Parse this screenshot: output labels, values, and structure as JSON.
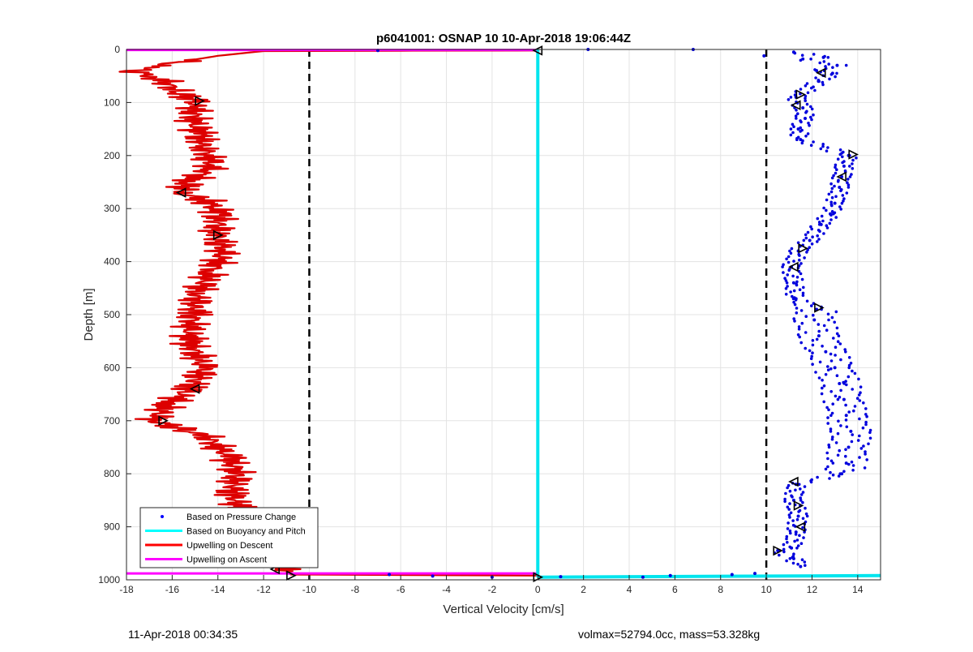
{
  "chart_data": {
    "type": "line",
    "title": "p6041001: OSNAP 10 10-Apr-2018 19:06:44Z",
    "xlabel": "Vertical Velocity [cm/s]",
    "ylabel": "Depth [m]",
    "xlim": [
      -18,
      15
    ],
    "ylim": [
      0,
      1000
    ],
    "y_reversed": true,
    "grid": true,
    "xticks": [
      "-18",
      "-16",
      "-14",
      "-12",
      "-10",
      "-8",
      "-6",
      "-4",
      "-2",
      "0",
      "2",
      "4",
      "6",
      "8",
      "10",
      "12",
      "14"
    ],
    "yticks": [
      "0",
      "100",
      "200",
      "300",
      "400",
      "500",
      "600",
      "700",
      "800",
      "900",
      "1000"
    ],
    "reference_lines": [
      -10,
      10
    ],
    "legend_position": "bottom-left",
    "legend": [
      {
        "name": "Based on Pressure Change",
        "color": "#0000ff",
        "style": "dot"
      },
      {
        "name": "Based on Buoyancy and Pitch",
        "color": "#00ffff",
        "style": "line"
      },
      {
        "name": "Upwelling on Descent",
        "color": "#ff0000",
        "style": "line"
      },
      {
        "name": "Upwelling on Ascent",
        "color": "#ff00ff",
        "style": "line"
      }
    ],
    "series": [
      {
        "name": "Upwelling on Descent",
        "color": "#dd0000",
        "points": [
          [
            0,
            2
          ],
          [
            -12,
            3
          ],
          [
            -14,
            12
          ],
          [
            -17.3,
            35
          ],
          [
            -17.6,
            42
          ],
          [
            -16.5,
            55
          ],
          [
            -15.8,
            80
          ],
          [
            -15,
            98
          ],
          [
            -15.1,
            130
          ],
          [
            -14.8,
            160
          ],
          [
            -14.6,
            190
          ],
          [
            -14.2,
            220
          ],
          [
            -15.3,
            250
          ],
          [
            -15.6,
            270
          ],
          [
            -14.5,
            285
          ],
          [
            -13.9,
            310
          ],
          [
            -14.1,
            350
          ],
          [
            -13.7,
            380
          ],
          [
            -14.3,
            420
          ],
          [
            -14.9,
            460
          ],
          [
            -15.1,
            500
          ],
          [
            -15.3,
            550
          ],
          [
            -14.6,
            600
          ],
          [
            -15.2,
            640
          ],
          [
            -16.2,
            670
          ],
          [
            -16.8,
            700
          ],
          [
            -14.5,
            730
          ],
          [
            -13.5,
            770
          ],
          [
            -13.2,
            800
          ],
          [
            -13.4,
            840
          ],
          [
            -12.8,
            880
          ],
          [
            -12.2,
            920
          ],
          [
            -11.7,
            950
          ],
          [
            -11.2,
            980
          ],
          [
            -10.8,
            990
          ],
          [
            0,
            992
          ]
        ]
      },
      {
        "name": "Upwelling on Ascent",
        "color": "#ff00ff",
        "points": [
          [
            -18,
            1
          ],
          [
            0,
            1
          ],
          [
            -18,
            988
          ],
          [
            0,
            988
          ]
        ]
      },
      {
        "name": "Based on Buoyancy and Pitch",
        "color": "#00e5ee",
        "points": [
          [
            0,
            0
          ],
          [
            0,
            995
          ],
          [
            15,
            992
          ]
        ]
      }
    ],
    "pressure_change_points": [
      [
        11.2,
        5
      ],
      [
        12.5,
        15
      ],
      [
        13.1,
        30
      ],
      [
        12.9,
        45
      ],
      [
        12.3,
        60
      ],
      [
        11.3,
        90
      ],
      [
        11.6,
        110
      ],
      [
        11.7,
        130
      ],
      [
        11.4,
        150
      ],
      [
        11.5,
        170
      ],
      [
        13.6,
        200
      ],
      [
        13.4,
        220
      ],
      [
        13.3,
        240
      ],
      [
        13.2,
        260
      ],
      [
        13,
        290
      ],
      [
        12.8,
        310
      ],
      [
        12.4,
        330
      ],
      [
        11.9,
        360
      ],
      [
        11.4,
        380
      ],
      [
        11.1,
        410
      ],
      [
        11.2,
        440
      ],
      [
        11.3,
        470
      ],
      [
        12.2,
        490
      ],
      [
        12.1,
        510
      ],
      [
        12.3,
        540
      ],
      [
        12.6,
        570
      ],
      [
        13,
        600
      ],
      [
        13.2,
        630
      ],
      [
        13.4,
        660
      ],
      [
        13.5,
        690
      ],
      [
        13.7,
        720
      ],
      [
        13.6,
        750
      ],
      [
        13.5,
        780
      ],
      [
        13.3,
        800
      ],
      [
        11.3,
        820
      ],
      [
        11.2,
        850
      ],
      [
        11.4,
        880
      ],
      [
        11.3,
        910
      ],
      [
        11.1,
        940
      ],
      [
        11.2,
        960
      ],
      [
        11.5,
        975
      ],
      [
        10.5,
        945
      ],
      [
        12.2,
        40
      ],
      [
        11.6,
        18
      ],
      [
        6.8,
        0
      ],
      [
        2.2,
        0
      ],
      [
        -7,
        2
      ],
      [
        9.9,
        12
      ],
      [
        4.6,
        995
      ],
      [
        5.8,
        992
      ],
      [
        1,
        994
      ],
      [
        -4.6,
        993
      ],
      [
        -2,
        995
      ],
      [
        -6.5,
        990
      ],
      [
        8.5,
        990
      ],
      [
        9.5,
        988
      ]
    ],
    "markers": [
      [
        -14.8,
        97
      ],
      [
        -15.6,
        270
      ],
      [
        -14,
        350
      ],
      [
        -15,
        640
      ],
      [
        -16.4,
        700
      ],
      [
        -11.5,
        980
      ],
      [
        -10.8,
        992
      ],
      [
        0,
        2
      ],
      [
        0,
        995
      ],
      [
        12.4,
        44
      ],
      [
        11.5,
        85
      ],
      [
        11.3,
        105
      ],
      [
        13.8,
        198
      ],
      [
        13.3,
        240
      ],
      [
        11.6,
        375
      ],
      [
        11.2,
        410
      ],
      [
        12.3,
        487
      ],
      [
        11.2,
        815
      ],
      [
        11.4,
        860
      ],
      [
        11.5,
        900
      ],
      [
        10.5,
        945
      ]
    ]
  },
  "footer": {
    "left": "11-Apr-2018 00:34:35",
    "right": "volmax=52794.0cc, mass=53.328kg"
  }
}
